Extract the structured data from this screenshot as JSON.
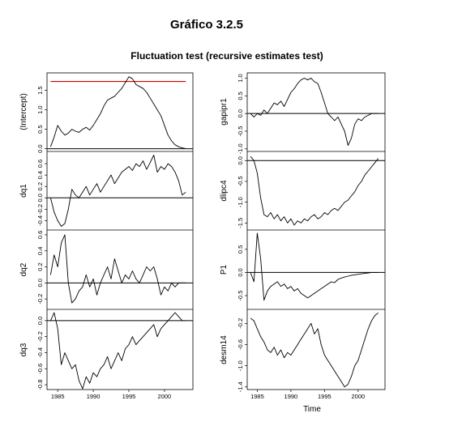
{
  "header": {
    "title": "Gráfico 3.2.5"
  },
  "chart_data": {
    "type": "line",
    "title": "Fluctuation test (recursive estimates test)",
    "xlabel": "Time",
    "xlim": [
      1983.5,
      2004.0
    ],
    "xticks": [
      1985,
      1990,
      1995,
      2000
    ],
    "xtick_labels": [
      "1985",
      "1990",
      "1995",
      "2000"
    ],
    "line_color": "#000000",
    "boundary_color": "#cc0000",
    "columns": [
      {
        "panels": [
          {
            "ylabel": "(Intercept)",
            "ylim": [
              -0.05,
              1.95
            ],
            "yticks": [
              0.0,
              0.5,
              1.0,
              1.5
            ],
            "ytick_labels": [
              "0.0",
              "0.5",
              "1.0",
              "1.5"
            ],
            "refline": 0,
            "boundary": 1.73,
            "x": [
              1984,
              1984.5,
              1985,
              1985.5,
              1986,
              1986.5,
              1987,
              1987.5,
              1988,
              1988.5,
              1989,
              1989.5,
              1990,
              1990.5,
              1991,
              1991.5,
              1992,
              1992.5,
              1993,
              1993.5,
              1994,
              1994.5,
              1995,
              1995.5,
              1996,
              1996.5,
              1997,
              1997.5,
              1998,
              1998.5,
              1999,
              1999.5,
              2000,
              2000.5,
              2001,
              2001.5,
              2002,
              2002.5,
              2003
            ],
            "y": [
              0.05,
              0.3,
              0.6,
              0.45,
              0.35,
              0.4,
              0.5,
              0.45,
              0.42,
              0.5,
              0.55,
              0.48,
              0.6,
              0.75,
              0.9,
              1.1,
              1.25,
              1.3,
              1.35,
              1.45,
              1.55,
              1.7,
              1.85,
              1.8,
              1.65,
              1.6,
              1.55,
              1.45,
              1.3,
              1.15,
              1.0,
              0.85,
              0.6,
              0.35,
              0.2,
              0.1,
              0.05,
              0.02,
              0.0
            ]
          },
          {
            "ylabel": "dq1",
            "ylim": [
              -0.55,
              0.8
            ],
            "yticks": [
              -0.4,
              -0.2,
              0.0,
              0.2,
              0.4,
              0.6
            ],
            "ytick_labels": [
              "-0.4",
              "-0.2",
              "0.0",
              "0.2",
              "0.4",
              "0.6"
            ],
            "refline": 0,
            "x": [
              1984,
              1984.5,
              1985,
              1985.5,
              1986,
              1986.5,
              1987,
              1987.5,
              1988,
              1988.5,
              1989,
              1989.5,
              1990,
              1990.5,
              1991,
              1991.5,
              1992,
              1992.5,
              1993,
              1993.5,
              1994,
              1994.5,
              1995,
              1995.5,
              1996,
              1996.5,
              1997,
              1997.5,
              1998,
              1998.5,
              1999,
              1999.5,
              2000,
              2000.5,
              2001,
              2001.5,
              2002,
              2002.5,
              2003
            ],
            "y": [
              0.0,
              -0.25,
              -0.4,
              -0.5,
              -0.45,
              -0.2,
              0.15,
              0.05,
              0.0,
              0.1,
              0.2,
              0.05,
              0.15,
              0.25,
              0.1,
              0.2,
              0.3,
              0.4,
              0.25,
              0.35,
              0.45,
              0.5,
              0.55,
              0.48,
              0.6,
              0.55,
              0.65,
              0.5,
              0.62,
              0.75,
              0.45,
              0.55,
              0.5,
              0.6,
              0.55,
              0.45,
              0.3,
              0.05,
              0.1
            ]
          },
          {
            "ylabel": "dq2",
            "ylim": [
              -0.32,
              0.65
            ],
            "yticks": [
              -0.2,
              0.0,
              0.2,
              0.4,
              0.6
            ],
            "ytick_labels": [
              "-0.2",
              "0.0",
              "0.2",
              "0.4",
              "0.6"
            ],
            "refline": 0,
            "x": [
              1984,
              1984.5,
              1985,
              1985.5,
              1986,
              1986.5,
              1987,
              1987.5,
              1988,
              1988.5,
              1989,
              1989.5,
              1990,
              1990.5,
              1991,
              1991.5,
              1992,
              1992.5,
              1993,
              1993.5,
              1994,
              1994.5,
              1995,
              1995.5,
              1996,
              1996.5,
              1997,
              1997.5,
              1998,
              1998.5,
              1999,
              1999.5,
              2000,
              2000.5,
              2001,
              2001.5,
              2002,
              2002.5,
              2003
            ],
            "y": [
              0.1,
              0.35,
              0.2,
              0.5,
              0.6,
              0.0,
              -0.25,
              -0.2,
              -0.1,
              -0.05,
              0.1,
              -0.05,
              0.05,
              -0.15,
              0.0,
              0.1,
              0.2,
              0.05,
              0.3,
              0.15,
              0.0,
              0.1,
              0.05,
              0.15,
              0.05,
              0.0,
              0.1,
              0.2,
              0.15,
              0.2,
              0.05,
              -0.15,
              -0.05,
              -0.1,
              0.0,
              -0.05,
              0.0,
              0.0,
              0.0
            ]
          },
          {
            "ylabel": "dq3",
            "ylim": [
              -0.86,
              0.13
            ],
            "yticks": [
              -0.8,
              -0.6,
              -0.4,
              -0.2,
              0.0
            ],
            "ytick_labels": [
              "-0.8",
              "-0.6",
              "-0.4",
              "-0.2",
              "0.0"
            ],
            "refline": 0,
            "x": [
              1984,
              1984.5,
              1985,
              1985.5,
              1986,
              1986.5,
              1987,
              1987.5,
              1988,
              1988.5,
              1989,
              1989.5,
              1990,
              1990.5,
              1991,
              1991.5,
              1992,
              1992.5,
              1993,
              1993.5,
              1994,
              1994.5,
              1995,
              1995.5,
              1996,
              1996.5,
              1997,
              1997.5,
              1998,
              1998.5,
              1999,
              1999.5,
              2000,
              2000.5,
              2001,
              2001.5,
              2002,
              2002.5,
              2003
            ],
            "y": [
              0.0,
              0.1,
              -0.1,
              -0.55,
              -0.4,
              -0.5,
              -0.6,
              -0.55,
              -0.75,
              -0.85,
              -0.7,
              -0.78,
              -0.65,
              -0.7,
              -0.6,
              -0.55,
              -0.45,
              -0.6,
              -0.5,
              -0.4,
              -0.5,
              -0.35,
              -0.3,
              -0.2,
              -0.3,
              -0.25,
              -0.2,
              -0.15,
              -0.1,
              -0.05,
              -0.2,
              -0.1,
              -0.05,
              0.0,
              0.05,
              0.1,
              0.05,
              0.0,
              0.0
            ]
          }
        ]
      },
      {
        "panels": [
          {
            "ylabel": "gapipr1",
            "ylim": [
              -1.05,
              1.15
            ],
            "yticks": [
              -1.0,
              -0.5,
              0.0,
              0.5,
              1.0
            ],
            "ytick_labels": [
              "-1.0",
              "-0.5",
              "0.0",
              "0.5",
              "1.0"
            ],
            "refline": 0,
            "x": [
              1984,
              1984.5,
              1985,
              1985.5,
              1986,
              1986.5,
              1987,
              1987.5,
              1988,
              1988.5,
              1989,
              1989.5,
              1990,
              1990.5,
              1991,
              1991.5,
              1992,
              1992.5,
              1993,
              1993.5,
              1994,
              1994.5,
              1995,
              1995.5,
              1996,
              1996.5,
              1997,
              1997.5,
              1998,
              1998.5,
              1999,
              1999.5,
              2000,
              2000.5,
              2001,
              2001.5,
              2002,
              2002.5,
              2003
            ],
            "y": [
              0.0,
              -0.1,
              0.0,
              -0.05,
              0.1,
              0.0,
              0.15,
              0.3,
              0.25,
              0.35,
              0.2,
              0.4,
              0.6,
              0.7,
              0.85,
              0.95,
              1.0,
              0.95,
              1.0,
              0.9,
              0.85,
              0.6,
              0.3,
              0.0,
              -0.1,
              -0.2,
              -0.1,
              -0.3,
              -0.5,
              -0.9,
              -0.7,
              -0.3,
              -0.15,
              -0.2,
              -0.1,
              -0.05,
              0.0,
              0.0,
              0.0
            ]
          },
          {
            "ylabel": "dlipc4",
            "ylim": [
              -1.65,
              0.2
            ],
            "yticks": [
              -1.5,
              -1.0,
              -0.5,
              0.0
            ],
            "ytick_labels": [
              "-1.5",
              "-1.0",
              "-0.5",
              "0.0"
            ],
            "refline": 0,
            "x": [
              1984,
              1984.5,
              1985,
              1985.5,
              1986,
              1986.5,
              1987,
              1987.5,
              1988,
              1988.5,
              1989,
              1989.5,
              1990,
              1990.5,
              1991,
              1991.5,
              1992,
              1992.5,
              1993,
              1993.5,
              1994,
              1994.5,
              1995,
              1995.5,
              1996,
              1996.5,
              1997,
              1997.5,
              1998,
              1998.5,
              1999,
              1999.5,
              2000,
              2000.5,
              2001,
              2001.5,
              2002,
              2002.5,
              2003
            ],
            "y": [
              0.1,
              0.0,
              -0.3,
              -0.9,
              -1.3,
              -1.35,
              -1.25,
              -1.4,
              -1.3,
              -1.45,
              -1.35,
              -1.5,
              -1.4,
              -1.55,
              -1.45,
              -1.5,
              -1.4,
              -1.45,
              -1.35,
              -1.3,
              -1.4,
              -1.35,
              -1.25,
              -1.3,
              -1.2,
              -1.15,
              -1.2,
              -1.1,
              -1.0,
              -0.95,
              -0.85,
              -0.75,
              -0.6,
              -0.5,
              -0.35,
              -0.25,
              -0.15,
              -0.05,
              0.05
            ]
          },
          {
            "ylabel": "P1",
            "ylim": [
              -0.78,
              0.9
            ],
            "yticks": [
              -0.5,
              0.0,
              0.5
            ],
            "ytick_labels": [
              "-0.5",
              "0.0",
              "0.5"
            ],
            "refline": 0,
            "x": [
              1984,
              1984.5,
              1985,
              1985.5,
              1986,
              1986.5,
              1987,
              1987.5,
              1988,
              1988.5,
              1989,
              1989.5,
              1990,
              1990.5,
              1991,
              1991.5,
              1992,
              1992.5,
              1993,
              1993.5,
              1994,
              1994.5,
              1995,
              1995.5,
              1996,
              1996.5,
              1997,
              1997.5,
              1998,
              1998.5,
              1999,
              1999.5,
              2000,
              2000.5,
              2001,
              2001.5,
              2002,
              2002.5,
              2003
            ],
            "y": [
              0.0,
              -0.2,
              0.85,
              0.3,
              -0.6,
              -0.4,
              -0.3,
              -0.25,
              -0.2,
              -0.3,
              -0.25,
              -0.35,
              -0.3,
              -0.4,
              -0.35,
              -0.45,
              -0.5,
              -0.55,
              -0.5,
              -0.45,
              -0.4,
              -0.35,
              -0.3,
              -0.25,
              -0.2,
              -0.22,
              -0.15,
              -0.12,
              -0.1,
              -0.08,
              -0.06,
              -0.05,
              -0.04,
              -0.03,
              -0.02,
              -0.01,
              0.0,
              0.0,
              0.0
            ]
          },
          {
            "ylabel": "desm14",
            "ylim": [
              -1.45,
              0.05
            ],
            "yticks": [
              -1.4,
              -1.0,
              -0.6,
              -0.2
            ],
            "ytick_labels": [
              "-1.4",
              "-1.0",
              "-0.6",
              "-0.2"
            ],
            "refline": null,
            "x": [
              1984,
              1984.5,
              1985,
              1985.5,
              1986,
              1986.5,
              1987,
              1987.5,
              1988,
              1988.5,
              1989,
              1989.5,
              1990,
              1990.5,
              1991,
              1991.5,
              1992,
              1992.5,
              1993,
              1993.5,
              1994,
              1994.5,
              1995,
              1995.5,
              1996,
              1996.5,
              1997,
              1997.5,
              1998,
              1998.5,
              1999,
              1999.5,
              2000,
              2000.5,
              2001,
              2001.5,
              2002,
              2002.5,
              2003
            ],
            "y": [
              -0.1,
              -0.15,
              -0.3,
              -0.45,
              -0.55,
              -0.7,
              -0.75,
              -0.65,
              -0.8,
              -0.7,
              -0.85,
              -0.75,
              -0.8,
              -0.7,
              -0.6,
              -0.5,
              -0.4,
              -0.3,
              -0.2,
              -0.4,
              -0.3,
              -0.6,
              -0.8,
              -0.9,
              -1.0,
              -1.1,
              -1.2,
              -1.3,
              -1.4,
              -1.35,
              -1.2,
              -1.0,
              -0.9,
              -0.7,
              -0.5,
              -0.3,
              -0.15,
              -0.05,
              0.0
            ]
          }
        ]
      }
    ]
  }
}
